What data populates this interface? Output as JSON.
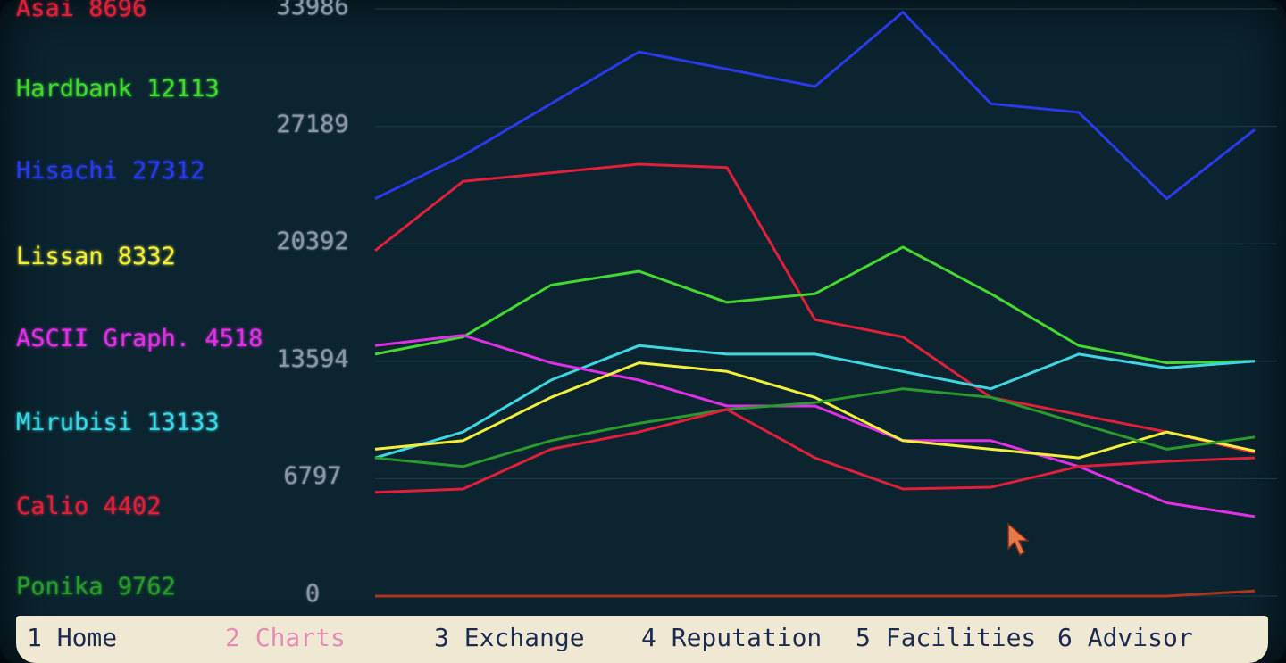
{
  "companies": [
    {
      "label": "Asai 8696",
      "color": "#e0203a"
    },
    {
      "label": "Hardbank 12113",
      "color": "#44d830"
    },
    {
      "label": "Hisachi 27312",
      "color": "#2a3ae8"
    },
    {
      "label": "Lissan 8332",
      "color": "#f2ef3c"
    },
    {
      "label": "ASCII Graph. 4518",
      "color": "#e030e6"
    },
    {
      "label": "Mirubisi 13133",
      "color": "#3ed6e2"
    },
    {
      "label": "Calio 4402",
      "color": "#e0203a"
    },
    {
      "label": "Ponika 9762",
      "color": "#2b9a2c"
    }
  ],
  "menu": [
    {
      "label": "1 Home"
    },
    {
      "label": "2 Charts",
      "active": true
    },
    {
      "label": "3 Exchange"
    },
    {
      "label": "4 Reputation"
    },
    {
      "label": "5 Facilities"
    },
    {
      "label": "6 Advisor"
    }
  ],
  "chart_data": {
    "type": "line",
    "yticks": [
      "33986",
      "27189",
      "20392",
      "13594",
      "6797",
      "0"
    ],
    "ylim": [
      0,
      33986
    ],
    "x": [
      0,
      10,
      20,
      30,
      40,
      50,
      60,
      70,
      80,
      90,
      100
    ],
    "series": [
      {
        "color": "#2a3ae8",
        "values": [
          23000,
          25500,
          28500,
          31500,
          30500,
          29500,
          33800,
          28500,
          28000,
          23000,
          27000
        ]
      },
      {
        "color": "#e0203a",
        "values": [
          20000,
          24000,
          24500,
          25000,
          24800,
          16000,
          15000,
          11500,
          10500,
          9500,
          8300
        ]
      },
      {
        "color": "#44d830",
        "values": [
          14000,
          15000,
          18000,
          18800,
          17000,
          17500,
          20200,
          17500,
          14500,
          13500,
          13600
        ]
      },
      {
        "color": "#3ed6e2",
        "values": [
          8000,
          9500,
          12500,
          14500,
          14000,
          14000,
          13000,
          12000,
          14000,
          13200,
          13600
        ]
      },
      {
        "color": "#e030e6",
        "values": [
          14500,
          15100,
          13500,
          12500,
          11000,
          11000,
          9000,
          9000,
          7500,
          5400,
          4600
        ]
      },
      {
        "color": "#f2ef3c",
        "values": [
          8500,
          9000,
          11500,
          13500,
          13000,
          11500,
          9000,
          8500,
          8000,
          9500,
          8400
        ]
      },
      {
        "color": "#2b9a2c",
        "values": [
          8000,
          7500,
          9000,
          10000,
          10800,
          11200,
          12000,
          11500,
          10000,
          8500,
          9200
        ]
      },
      {
        "color": "#e0203a",
        "values": [
          6000,
          6200,
          8500,
          9500,
          10800,
          8000,
          6200,
          6300,
          7500,
          7800,
          8000
        ]
      },
      {
        "color": "#b0331e",
        "values": [
          0,
          0,
          0,
          0,
          0,
          0,
          0,
          0,
          0,
          0,
          300
        ]
      }
    ]
  }
}
